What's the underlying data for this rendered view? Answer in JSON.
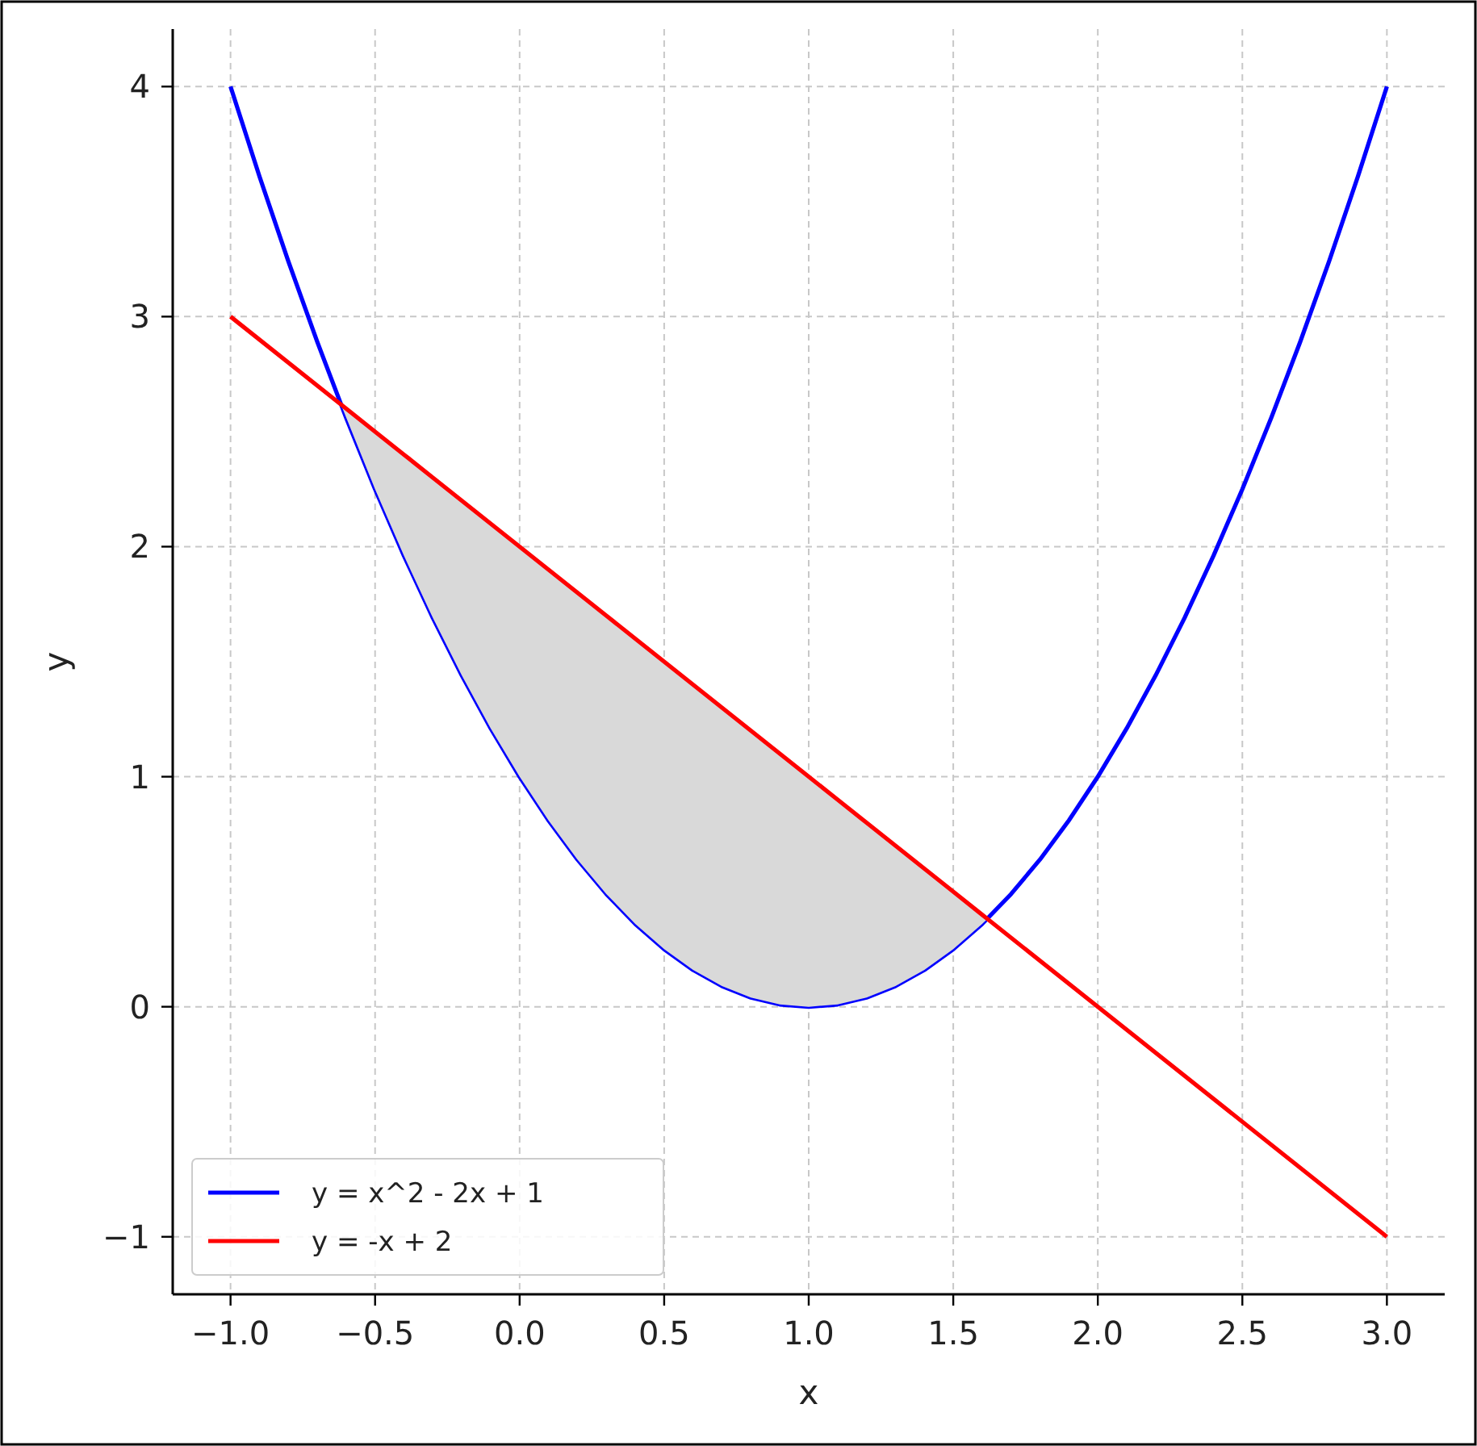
{
  "chart_data": {
    "type": "line",
    "xlabel": "x",
    "ylabel": "y",
    "xlim": [
      -1.2,
      3.2
    ],
    "ylim": [
      -1.25,
      4.25
    ],
    "xticks": [
      {
        "value": -1,
        "label": "−1.0"
      },
      {
        "value": -0.5,
        "label": "−0.5"
      },
      {
        "value": 0,
        "label": "0.0"
      },
      {
        "value": 0.5,
        "label": "0.5"
      },
      {
        "value": 1,
        "label": "1.0"
      },
      {
        "value": 1.5,
        "label": "1.5"
      },
      {
        "value": 2,
        "label": "2.0"
      },
      {
        "value": 2.5,
        "label": "2.5"
      },
      {
        "value": 3,
        "label": "3.0"
      }
    ],
    "yticks": [
      {
        "value": -1,
        "label": "−1"
      },
      0,
      1,
      2,
      3,
      4
    ],
    "grid": true,
    "legend": "bottom left",
    "line_style": "solid",
    "marker": "none",
    "series": [
      {
        "name": "y = x^2 - 2x + 1",
        "color": "#0000ff",
        "x": [
          -1,
          -0.9,
          -0.8,
          -0.7,
          -0.6,
          -0.5,
          -0.4,
          -0.3,
          -0.2,
          -0.1,
          0,
          0.1,
          0.2,
          0.3,
          0.4,
          0.5,
          0.6,
          0.7,
          0.8,
          0.9,
          1,
          1.1,
          1.2,
          1.3,
          1.4,
          1.5,
          1.6,
          1.7,
          1.8,
          1.9,
          2,
          2.1,
          2.2,
          2.3,
          2.4,
          2.5,
          2.6,
          2.7,
          2.8,
          2.9,
          3
        ],
        "values": [
          4,
          3.61,
          3.24,
          2.89,
          2.56,
          2.25,
          1.96,
          1.69,
          1.44,
          1.21,
          1,
          0.81,
          0.64,
          0.49,
          0.36,
          0.25,
          0.16,
          0.09,
          0.04,
          0.01,
          0,
          0.01,
          0.04,
          0.09,
          0.16,
          0.25,
          0.36,
          0.49,
          0.64,
          0.81,
          1,
          1.21,
          1.44,
          1.69,
          1.96,
          2.25,
          2.56,
          2.89,
          3.24,
          3.61,
          4
        ]
      },
      {
        "name": "y = -x + 2",
        "color": "#ff0000",
        "x": [
          -1,
          -0.618,
          -0.5,
          -0.4,
          -0.3,
          -0.2,
          -0.1,
          0,
          0.1,
          0.2,
          0.3,
          0.4,
          0.5,
          0.6,
          0.7,
          0.8,
          0.9,
          1,
          1.1,
          1.2,
          1.3,
          1.4,
          1.5,
          1.6,
          1.618,
          3
        ],
        "values": [
          3,
          2.618,
          2.5,
          2.4,
          2.3,
          2.2,
          2.1,
          2,
          1.9,
          1.8,
          1.7,
          1.6,
          1.5,
          1.4,
          1.3,
          1.2,
          1.1,
          1,
          0.9,
          0.8,
          0.7,
          0.6,
          0.5,
          0.4,
          0.382,
          -1
        ],
        "lower": [
          null,
          2.618,
          2.25,
          1.96,
          1.69,
          1.44,
          1.21,
          1,
          0.81,
          0.64,
          0.49,
          0.36,
          0.25,
          0.16,
          0.09,
          0.04,
          0.01,
          0,
          0.01,
          0.04,
          0.09,
          0.16,
          0.25,
          0.36,
          0.382,
          null
        ],
        "upper": [
          null,
          2.618,
          2.5,
          2.4,
          2.3,
          2.2,
          2.1,
          2,
          1.9,
          1.8,
          1.7,
          1.6,
          1.5,
          1.4,
          1.3,
          1.2,
          1.1,
          1,
          0.9,
          0.8,
          0.7,
          0.6,
          0.5,
          0.4,
          0.382,
          null
        ]
      }
    ]
  }
}
